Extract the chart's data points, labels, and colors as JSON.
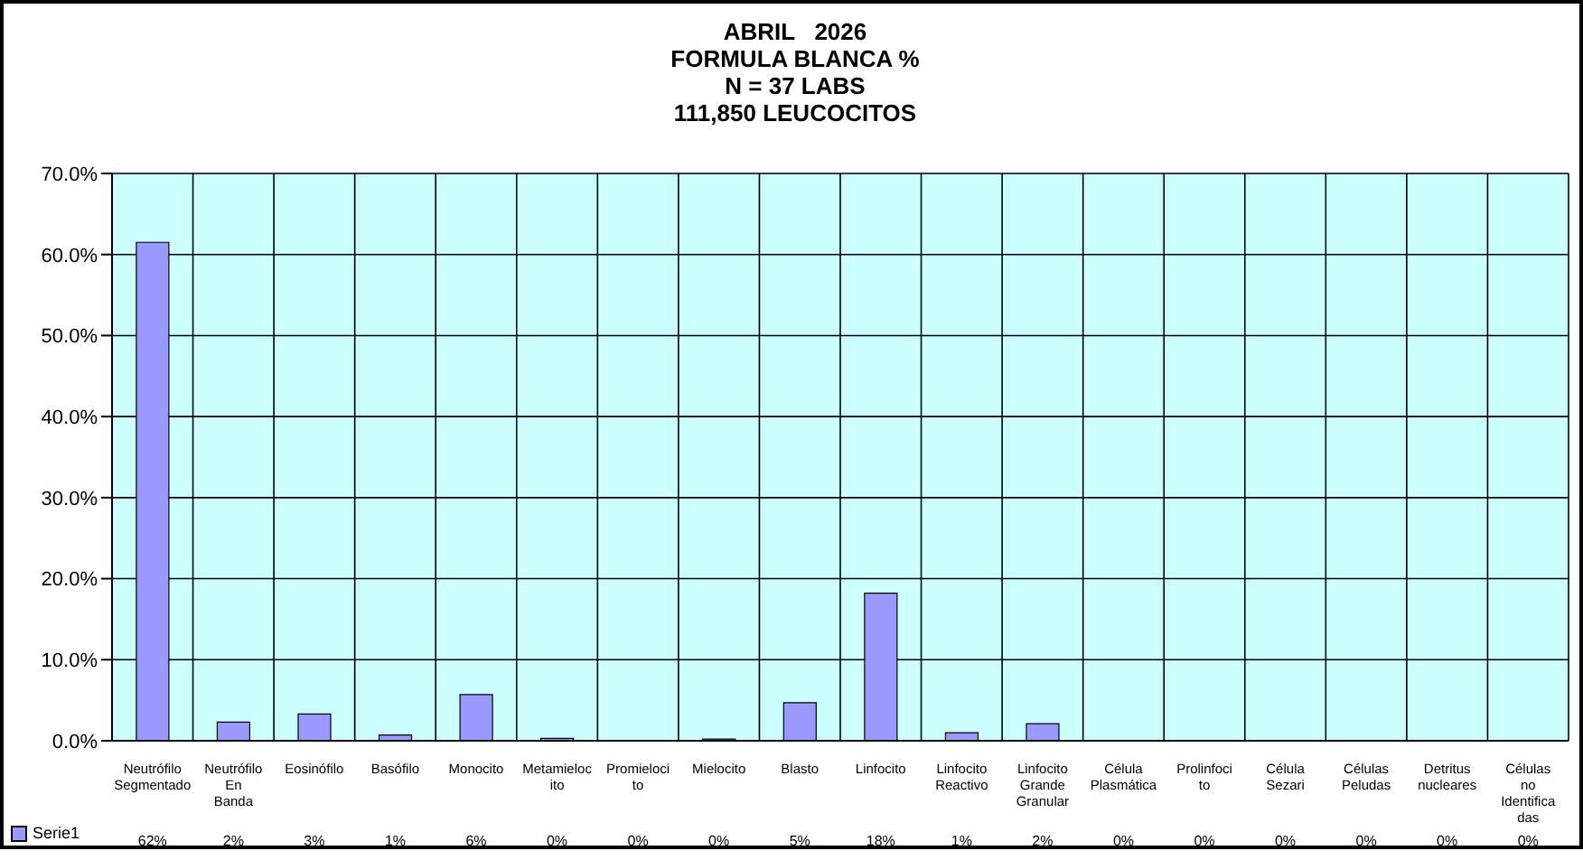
{
  "chart_data": {
    "type": "bar",
    "title": "ABRIL   2026",
    "subtitle": "FORMULA BLANCA %\nN = 37 LABS\n111,850 LEUCOCITOS",
    "categories": [
      "Neutrófilo Segmentado",
      "Neutrófilo En Banda",
      "Eosinófilo",
      "Basófilo",
      "Monocito",
      "Metamielocito",
      "Promielocito",
      "Mielocito",
      "Blasto",
      "Linfocito",
      "Linfocito Reactivo",
      "Linfocito Grande Granular",
      "Célula Plasmática",
      "Prolinfocito",
      "Célula Sezari",
      "Células Peludas",
      "Detritus nucleares",
      "Células no Identificadas"
    ],
    "series": [
      {
        "name": "Serie1",
        "color": "#9999ff",
        "values": [
          61.5,
          2.3,
          3.3,
          0.7,
          5.7,
          0.3,
          0,
          0.2,
          4.7,
          18.2,
          1.0,
          2.1,
          0,
          0,
          0,
          0,
          0,
          0
        ],
        "value_labels": [
          "62%",
          "2%",
          "3%",
          "1%",
          "6%",
          "0%",
          "0%",
          "0%",
          "5%",
          "18%",
          "1%",
          "2%",
          "0%",
          "0%",
          "0%",
          "0%",
          "0%",
          "0%"
        ]
      }
    ],
    "ylim": [
      0,
      70
    ],
    "yticks": [
      {
        "value": 0,
        "label": "0.0%"
      },
      {
        "value": 10,
        "label": "10.0%"
      },
      {
        "value": 20,
        "label": "20.0%"
      },
      {
        "value": 30,
        "label": "30.0%"
      },
      {
        "value": 40,
        "label": "40.0%"
      },
      {
        "value": 50,
        "label": "50.0%"
      },
      {
        "value": 60,
        "label": "60.0%"
      },
      {
        "value": 70,
        "label": "70.0%"
      }
    ],
    "grid": true,
    "legend": "bottom left"
  }
}
